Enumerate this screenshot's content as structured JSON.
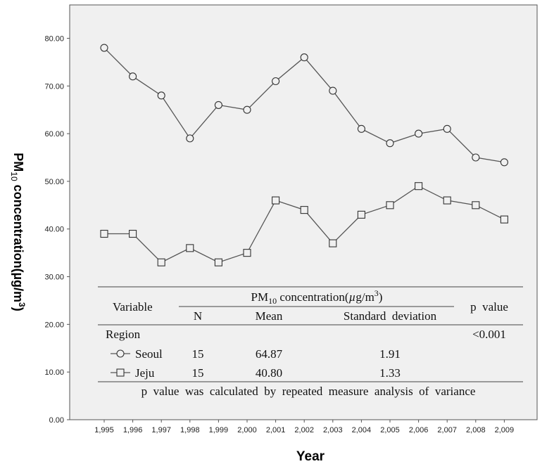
{
  "chart_data": {
    "type": "line",
    "xlabel": "Year",
    "ylabel_main": "PM",
    "ylabel_sub": "10",
    "ylabel_rest": " concentration(µg/m",
    "ylabel_sup": "3",
    "ylabel_close": ")",
    "ylim": [
      0,
      87
    ],
    "yticks": [
      "0.00",
      "10.00",
      "20.00",
      "30.00",
      "40.00",
      "50.00",
      "60.00",
      "70.00",
      "80.00"
    ],
    "x": [
      "1,995",
      "1,996",
      "1,997",
      "1,998",
      "1,999",
      "2,000",
      "2,001",
      "2,002",
      "2,003",
      "2,004",
      "2,005",
      "2,006",
      "2,007",
      "2,008",
      "2,009"
    ],
    "series": [
      {
        "name": "Seoul",
        "marker": "circle",
        "values": [
          78,
          72,
          68,
          59,
          66,
          65,
          71,
          76,
          69,
          61,
          58,
          60,
          61,
          55,
          54
        ]
      },
      {
        "name": "Jeju",
        "marker": "square",
        "values": [
          39,
          39,
          33,
          36,
          33,
          35,
          46,
          44,
          37,
          43,
          45,
          49,
          46,
          45,
          42
        ]
      }
    ],
    "grid": false,
    "background": "#f0f0f0",
    "line_color": "#555555"
  },
  "table": {
    "variable": "Variable",
    "pm_pre": "PM",
    "pm_sub": "10",
    "pm_post": "  concentration(",
    "pm_mu": "µ",
    "pm_unit": "g/m",
    "pm_sup": "3",
    "pm_close": ")",
    "col_n": "N",
    "col_mean": "Mean",
    "col_sd": "Standard  deviation",
    "col_p": "p  value",
    "region": "Region",
    "p_value": "<0.001",
    "rows": [
      {
        "label": "Seoul",
        "n": "15",
        "mean": "64.87",
        "sd": "1.91"
      },
      {
        "label": "Jeju",
        "n": "15",
        "mean": "40.80",
        "sd": "1.33"
      }
    ],
    "footnote": "p  value  was  calculated  by  repeated  measure  analysis  of  variance"
  }
}
